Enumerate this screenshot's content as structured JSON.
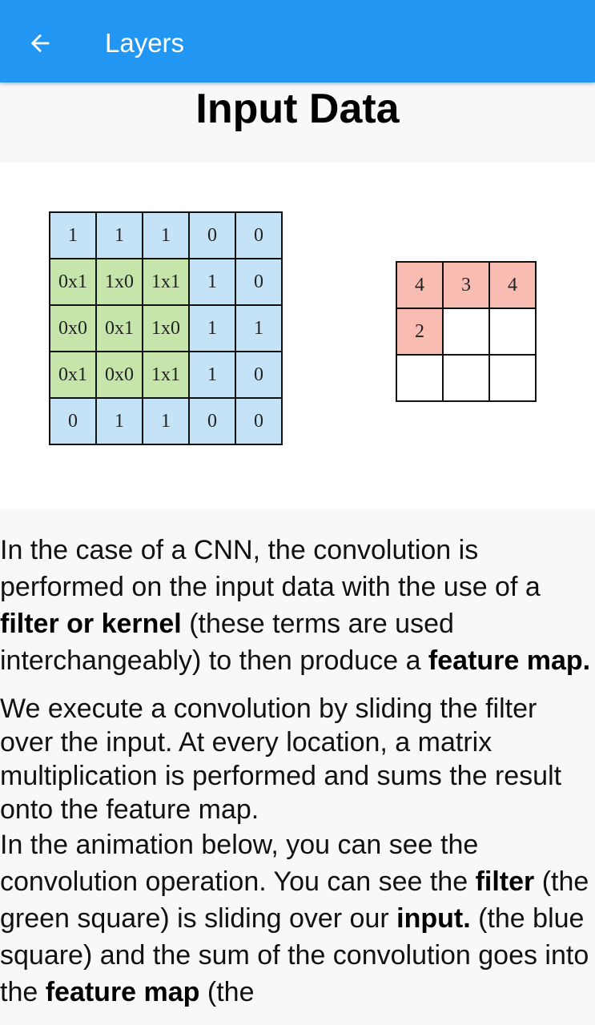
{
  "appbar": {
    "title": "Layers",
    "back_icon": "arrow-back-icon"
  },
  "heading": "Input Data",
  "figure": {
    "input_grid": [
      [
        "1",
        "1",
        "1",
        "0",
        "0"
      ],
      [
        "0x1",
        "1x0",
        "1x1",
        "1",
        "0"
      ],
      [
        "0x0",
        "0x1",
        "1x0",
        "1",
        "1"
      ],
      [
        "0x1",
        "0x0",
        "1x1",
        "1",
        "0"
      ],
      [
        "0",
        "1",
        "1",
        "0",
        "0"
      ]
    ],
    "feature_map": [
      [
        "4",
        "3",
        "4"
      ],
      [
        "2",
        "",
        ""
      ],
      [
        "",
        "",
        ""
      ]
    ],
    "colors": {
      "input": "#c4e3f6",
      "filter": "#c5e5aa",
      "feature": "#f9bcb3"
    }
  },
  "paragraph1": {
    "t1": "In the case of a CNN, the convolution is performed on the input data with the use of a ",
    "b1": "filter or kernel",
    "t2": " (these terms are used interchangeably) to then produce a ",
    "b2": "feature map."
  },
  "paragraph2": "We execute a convolution by sliding the filter over the input. At every location, a matrix multiplication is performed and sums the result onto the feature map.",
  "paragraph3": {
    "t1": "In the animation below, you can see the convolution operation. You can see the ",
    "b1": "filter",
    "t2": " (the green square) is sliding over our ",
    "b2": "input.",
    "t3": " (the blue square) and the sum of the convolution goes into the ",
    "b3": "feature map",
    "t4": " (the"
  }
}
